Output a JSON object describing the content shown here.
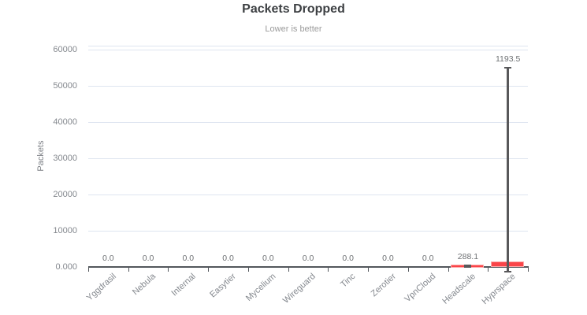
{
  "page": {
    "background": "#ffffff"
  },
  "chart_data": {
    "type": "bar",
    "title": "Packets Dropped",
    "subtitle": "Lower is better",
    "xlabel": "",
    "ylabel": "Packets",
    "categories": [
      "Yggdrasil",
      "Nebula",
      "Internal",
      "Easytier",
      "Mycelium",
      "Wireguard",
      "Tinc",
      "Zerotier",
      "VpnCloud",
      "Headscale",
      "Hyprspace"
    ],
    "values": [
      0.0,
      0.0,
      0.0,
      0.0,
      0.0,
      0.0,
      0.0,
      0.0,
      0.0,
      288.1,
      1193.5
    ],
    "value_labels": [
      "0.0",
      "0.0",
      "0.0",
      "0.0",
      "0.0",
      "0.0",
      "0.0",
      "0.0",
      "0.0",
      "288.1",
      "1193.5"
    ],
    "errors": [
      0,
      0,
      0,
      0,
      0,
      0,
      0,
      0,
      0,
      180,
      53800
    ],
    "ylim": [
      0,
      61000
    ],
    "yticks": [
      {
        "value": 0,
        "label": "0.000"
      },
      {
        "value": 10000,
        "label": "10000"
      },
      {
        "value": 20000,
        "label": "20000"
      },
      {
        "value": 30000,
        "label": "30000"
      },
      {
        "value": 40000,
        "label": "40000"
      },
      {
        "value": 50000,
        "label": "50000"
      },
      {
        "value": 60000,
        "label": "60000"
      }
    ],
    "grid": true,
    "legend": null,
    "colors": {
      "bar_fill": "#fa4549",
      "bar_border": "#fca9a9",
      "error_bar": "#58585a",
      "grid_line": "#dee5f0",
      "axis_line": "#53575c",
      "title": "#3d4043",
      "subtitle": "#9b9b9b",
      "tick_label": "#84888e",
      "value_label": "#6d7073"
    }
  }
}
